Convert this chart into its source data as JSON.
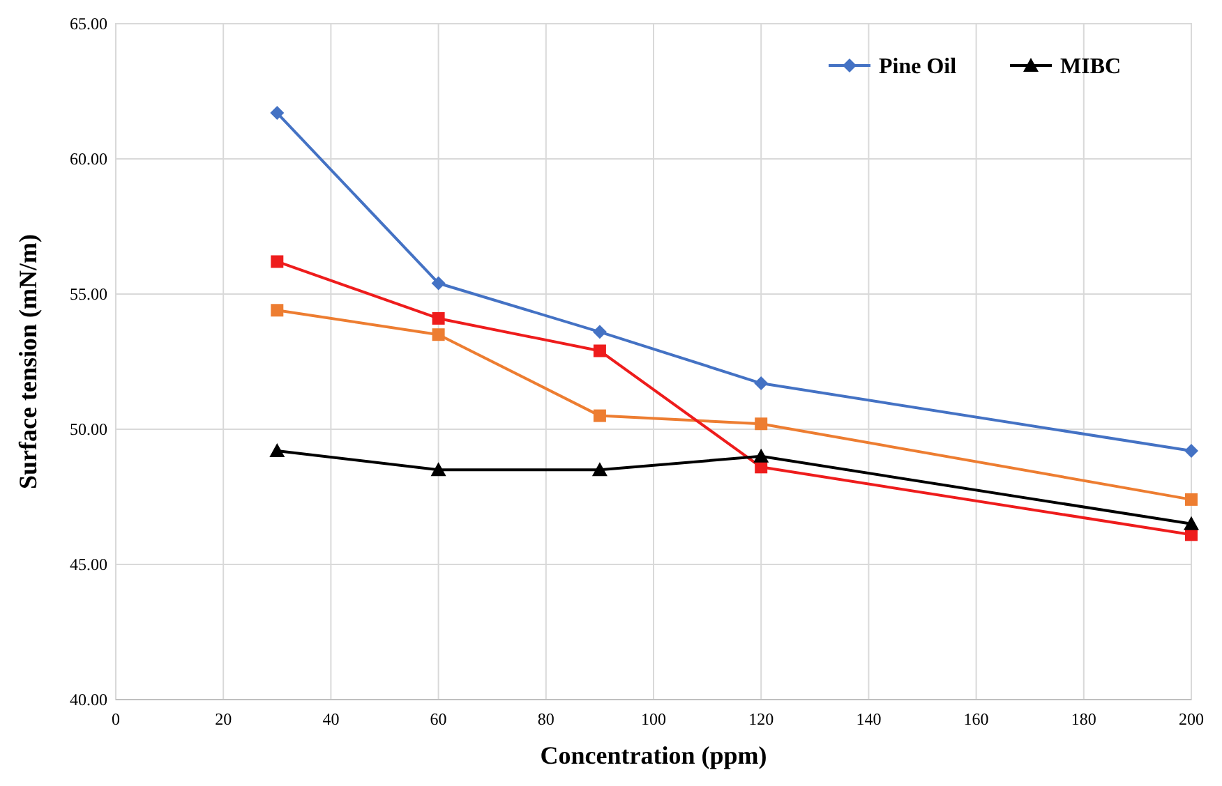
{
  "chart_data": {
    "type": "line",
    "xlabel": "Concentration (ppm)",
    "ylabel": "Surface tension (mN/m)",
    "x": [
      30,
      60,
      90,
      120,
      200
    ],
    "series": [
      {
        "color": "#ed7d31",
        "marker": "square",
        "values": [
          54.4,
          53.5,
          50.5,
          50.2,
          47.4
        ]
      },
      {
        "name": "Pine Oil",
        "color": "#4472c4",
        "marker": "diamond",
        "values": [
          61.7,
          55.4,
          53.6,
          51.7,
          49.2
        ]
      },
      {
        "color": "#ee1c1c",
        "marker": "square",
        "values": [
          56.2,
          54.1,
          52.9,
          48.6,
          46.1
        ]
      },
      {
        "name": "MIBC",
        "color": "#000000",
        "marker": "triangle",
        "values": [
          49.2,
          48.5,
          48.5,
          49.0,
          46.5
        ]
      }
    ],
    "xlim": [
      0,
      200
    ],
    "xticks": [
      0,
      20,
      40,
      60,
      80,
      100,
      120,
      140,
      160,
      180,
      200
    ],
    "ylim": [
      40,
      65
    ],
    "yticks": [
      {
        "value": 40,
        "label": "40.00"
      },
      {
        "value": 45,
        "label": "45.00"
      },
      {
        "value": 50,
        "label": "50.00"
      },
      {
        "value": 55,
        "label": "55.00"
      },
      {
        "value": 60,
        "label": "60.00"
      },
      {
        "value": 65,
        "label": "65.00"
      }
    ],
    "grid": true,
    "legend": "top right",
    "line_style": "solid"
  }
}
